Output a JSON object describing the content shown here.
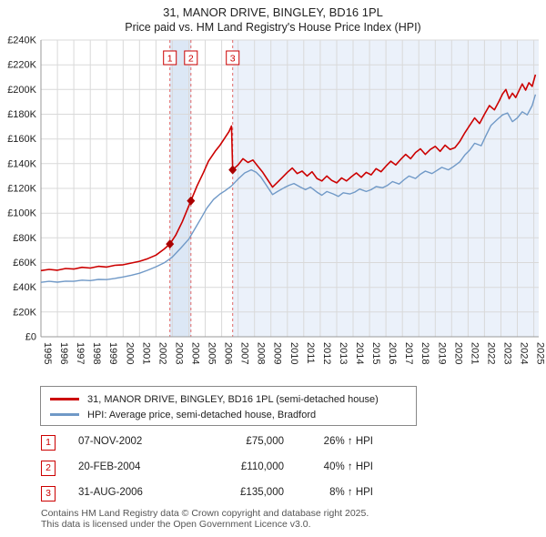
{
  "footer": {
    "line1": "Contains HM Land Registry data © Crown copyright and database right 2025.",
    "line2": "This data is licensed under the Open Government Licence v3.0."
  },
  "transactions": [
    {
      "num": "1",
      "date": "07-NOV-2002",
      "price": "£75,000",
      "hpi": "26% ↑ HPI"
    },
    {
      "num": "2",
      "date": "20-FEB-2004",
      "price": "£110,000",
      "hpi": "40% ↑ HPI"
    },
    {
      "num": "3",
      "date": "31-AUG-2006",
      "price": "£135,000",
      "hpi": "8% ↑ HPI"
    }
  ],
  "chart_data": {
    "type": "line",
    "title": "31, MANOR DRIVE, BINGLEY, BD16 1PL",
    "subtitle": "Price paid vs. HM Land Registry's House Price Index (HPI)",
    "xlabel": "",
    "ylabel": "",
    "x_range": [
      1995,
      2025.3
    ],
    "y_range": [
      0,
      240
    ],
    "y_tick_step": 20,
    "y_tick_labels": [
      "£0",
      "£20K",
      "£40K",
      "£60K",
      "£80K",
      "£100K",
      "£120K",
      "£140K",
      "£160K",
      "£180K",
      "£200K",
      "£220K",
      "£240K"
    ],
    "x_tick_years": [
      1995,
      1996,
      1997,
      1998,
      1999,
      2000,
      2001,
      2002,
      2003,
      2004,
      2005,
      2006,
      2007,
      2008,
      2009,
      2010,
      2011,
      2012,
      2013,
      2014,
      2015,
      2016,
      2017,
      2018,
      2019,
      2020,
      2021,
      2022,
      2023,
      2024,
      2025
    ],
    "grid": true,
    "legend": [
      "31, MANOR DRIVE, BINGLEY, BD16 1PL (semi-detached house)",
      "HPI: Average price, semi-detached house, Bradford"
    ],
    "legend_position": "bottom",
    "bands": [
      {
        "from": 2002.85,
        "to": 2004.13,
        "color": "#dce7f5"
      },
      {
        "from": 2006.67,
        "to": 2025.3,
        "color": "#ebf1fa"
      }
    ],
    "sales": [
      {
        "label": "1",
        "x": 2002.85,
        "y": 75
      },
      {
        "label": "2",
        "x": 2004.13,
        "y": 110
      },
      {
        "label": "3",
        "x": 2006.67,
        "y": 135
      }
    ],
    "series": [
      {
        "id": "property-price",
        "name": "31, MANOR DRIVE, BINGLEY, BD16 1PL (semi-detached house)",
        "color": "#cc0000",
        "width": 1.6,
        "points": [
          [
            1995.0,
            53.5
          ],
          [
            1995.5,
            54.5
          ],
          [
            1996.0,
            53.8
          ],
          [
            1996.5,
            55.2
          ],
          [
            1997.0,
            54.8
          ],
          [
            1997.5,
            56.2
          ],
          [
            1998.0,
            55.6
          ],
          [
            1998.5,
            57.0
          ],
          [
            1999.0,
            56.4
          ],
          [
            1999.5,
            57.8
          ],
          [
            2000.0,
            58.2
          ],
          [
            2000.5,
            59.6
          ],
          [
            2001.0,
            61.0
          ],
          [
            2001.5,
            63.2
          ],
          [
            2002.0,
            66.0
          ],
          [
            2002.5,
            71.0
          ],
          [
            2002.85,
            75.0
          ],
          [
            2003.2,
            82.0
          ],
          [
            2003.6,
            93.0
          ],
          [
            2004.13,
            110.0
          ],
          [
            2004.5,
            122.0
          ],
          [
            2004.9,
            133.0
          ],
          [
            2005.2,
            142.0
          ],
          [
            2005.6,
            150.0
          ],
          [
            2005.9,
            155.0
          ],
          [
            2006.2,
            161.0
          ],
          [
            2006.45,
            166.0
          ],
          [
            2006.6,
            170.5
          ],
          [
            2006.67,
            135.0
          ],
          [
            2007.0,
            139.0
          ],
          [
            2007.3,
            144.0
          ],
          [
            2007.6,
            141.0
          ],
          [
            2007.9,
            143.0
          ],
          [
            2008.2,
            138.0
          ],
          [
            2008.5,
            133.0
          ],
          [
            2008.8,
            127.0
          ],
          [
            2009.1,
            121.0
          ],
          [
            2009.4,
            125.0
          ],
          [
            2009.7,
            129.0
          ],
          [
            2010.0,
            133.0
          ],
          [
            2010.3,
            136.5
          ],
          [
            2010.6,
            132.0
          ],
          [
            2010.9,
            134.0
          ],
          [
            2011.2,
            130.0
          ],
          [
            2011.5,
            133.5
          ],
          [
            2011.8,
            128.0
          ],
          [
            2012.1,
            126.0
          ],
          [
            2012.4,
            130.0
          ],
          [
            2012.7,
            126.5
          ],
          [
            2013.0,
            124.5
          ],
          [
            2013.3,
            128.5
          ],
          [
            2013.6,
            126.0
          ],
          [
            2013.9,
            129.5
          ],
          [
            2014.2,
            132.5
          ],
          [
            2014.5,
            129.0
          ],
          [
            2014.8,
            133.0
          ],
          [
            2015.1,
            131.0
          ],
          [
            2015.4,
            136.0
          ],
          [
            2015.7,
            133.5
          ],
          [
            2016.0,
            138.0
          ],
          [
            2016.3,
            142.0
          ],
          [
            2016.6,
            139.0
          ],
          [
            2016.9,
            143.5
          ],
          [
            2017.2,
            147.5
          ],
          [
            2017.5,
            144.0
          ],
          [
            2017.8,
            149.0
          ],
          [
            2018.1,
            152.0
          ],
          [
            2018.4,
            147.5
          ],
          [
            2018.7,
            151.5
          ],
          [
            2019.0,
            154.0
          ],
          [
            2019.3,
            150.0
          ],
          [
            2019.6,
            155.0
          ],
          [
            2019.9,
            151.5
          ],
          [
            2020.2,
            153.0
          ],
          [
            2020.5,
            158.0
          ],
          [
            2020.8,
            165.0
          ],
          [
            2021.1,
            171.0
          ],
          [
            2021.4,
            177.0
          ],
          [
            2021.7,
            172.5
          ],
          [
            2022.0,
            180.0
          ],
          [
            2022.3,
            187.0
          ],
          [
            2022.6,
            183.5
          ],
          [
            2022.9,
            191.0
          ],
          [
            2023.1,
            196.5
          ],
          [
            2023.3,
            200.0
          ],
          [
            2023.5,
            192.5
          ],
          [
            2023.7,
            197.0
          ],
          [
            2023.9,
            193.5
          ],
          [
            2024.1,
            199.0
          ],
          [
            2024.3,
            204.5
          ],
          [
            2024.5,
            199.5
          ],
          [
            2024.7,
            205.5
          ],
          [
            2024.9,
            202.5
          ],
          [
            2025.1,
            212.0
          ]
        ]
      },
      {
        "id": "hpi-bradford",
        "name": "HPI: Average price, semi-detached house, Bradford",
        "color": "#7099c7",
        "width": 1.4,
        "points": [
          [
            1995.0,
            44.0
          ],
          [
            1995.5,
            44.8
          ],
          [
            1996.0,
            44.2
          ],
          [
            1996.5,
            45.0
          ],
          [
            1997.0,
            44.8
          ],
          [
            1997.5,
            45.8
          ],
          [
            1998.0,
            45.4
          ],
          [
            1998.5,
            46.4
          ],
          [
            1999.0,
            46.2
          ],
          [
            1999.5,
            47.2
          ],
          [
            2000.0,
            48.4
          ],
          [
            2000.5,
            49.8
          ],
          [
            2001.0,
            51.4
          ],
          [
            2001.5,
            53.8
          ],
          [
            2002.0,
            56.6
          ],
          [
            2002.5,
            59.8
          ],
          [
            2003.0,
            64.5
          ],
          [
            2003.5,
            71.5
          ],
          [
            2004.0,
            79.0
          ],
          [
            2004.4,
            88.0
          ],
          [
            2004.8,
            97.0
          ],
          [
            2005.1,
            104.0
          ],
          [
            2005.5,
            111.0
          ],
          [
            2005.9,
            115.5
          ],
          [
            2006.2,
            118.0
          ],
          [
            2006.6,
            122.0
          ],
          [
            2007.0,
            127.5
          ],
          [
            2007.4,
            132.5
          ],
          [
            2007.8,
            135.0
          ],
          [
            2008.1,
            133.0
          ],
          [
            2008.4,
            129.0
          ],
          [
            2008.8,
            121.0
          ],
          [
            2009.1,
            115.0
          ],
          [
            2009.4,
            117.5
          ],
          [
            2009.8,
            120.5
          ],
          [
            2010.1,
            122.5
          ],
          [
            2010.4,
            124.0
          ],
          [
            2010.8,
            121.0
          ],
          [
            2011.1,
            119.0
          ],
          [
            2011.4,
            121.0
          ],
          [
            2011.8,
            117.0
          ],
          [
            2012.1,
            114.5
          ],
          [
            2012.4,
            117.5
          ],
          [
            2012.8,
            115.5
          ],
          [
            2013.1,
            113.5
          ],
          [
            2013.4,
            116.5
          ],
          [
            2013.8,
            115.5
          ],
          [
            2014.1,
            117.0
          ],
          [
            2014.4,
            119.5
          ],
          [
            2014.8,
            117.5
          ],
          [
            2015.1,
            119.0
          ],
          [
            2015.4,
            121.5
          ],
          [
            2015.8,
            120.5
          ],
          [
            2016.1,
            122.5
          ],
          [
            2016.4,
            125.5
          ],
          [
            2016.8,
            123.5
          ],
          [
            2017.1,
            127.0
          ],
          [
            2017.4,
            130.0
          ],
          [
            2017.8,
            128.0
          ],
          [
            2018.1,
            131.5
          ],
          [
            2018.4,
            134.0
          ],
          [
            2018.8,
            132.0
          ],
          [
            2019.1,
            134.5
          ],
          [
            2019.4,
            137.0
          ],
          [
            2019.8,
            135.0
          ],
          [
            2020.1,
            137.5
          ],
          [
            2020.5,
            141.5
          ],
          [
            2020.8,
            147.0
          ],
          [
            2021.1,
            151.0
          ],
          [
            2021.4,
            156.5
          ],
          [
            2021.8,
            154.5
          ],
          [
            2022.1,
            163.0
          ],
          [
            2022.4,
            171.0
          ],
          [
            2022.8,
            176.0
          ],
          [
            2023.1,
            179.5
          ],
          [
            2023.4,
            181.0
          ],
          [
            2023.7,
            174.0
          ],
          [
            2024.0,
            177.0
          ],
          [
            2024.3,
            182.0
          ],
          [
            2024.6,
            179.5
          ],
          [
            2024.9,
            187.0
          ],
          [
            2025.1,
            196.0
          ]
        ]
      }
    ],
    "colors": {
      "property": "#cc0000",
      "hpi": "#7099c7",
      "sale_marker": "#aa0000",
      "sale_line": "#e06666",
      "grid": "#d9d9d9",
      "axis": "#999999"
    }
  }
}
